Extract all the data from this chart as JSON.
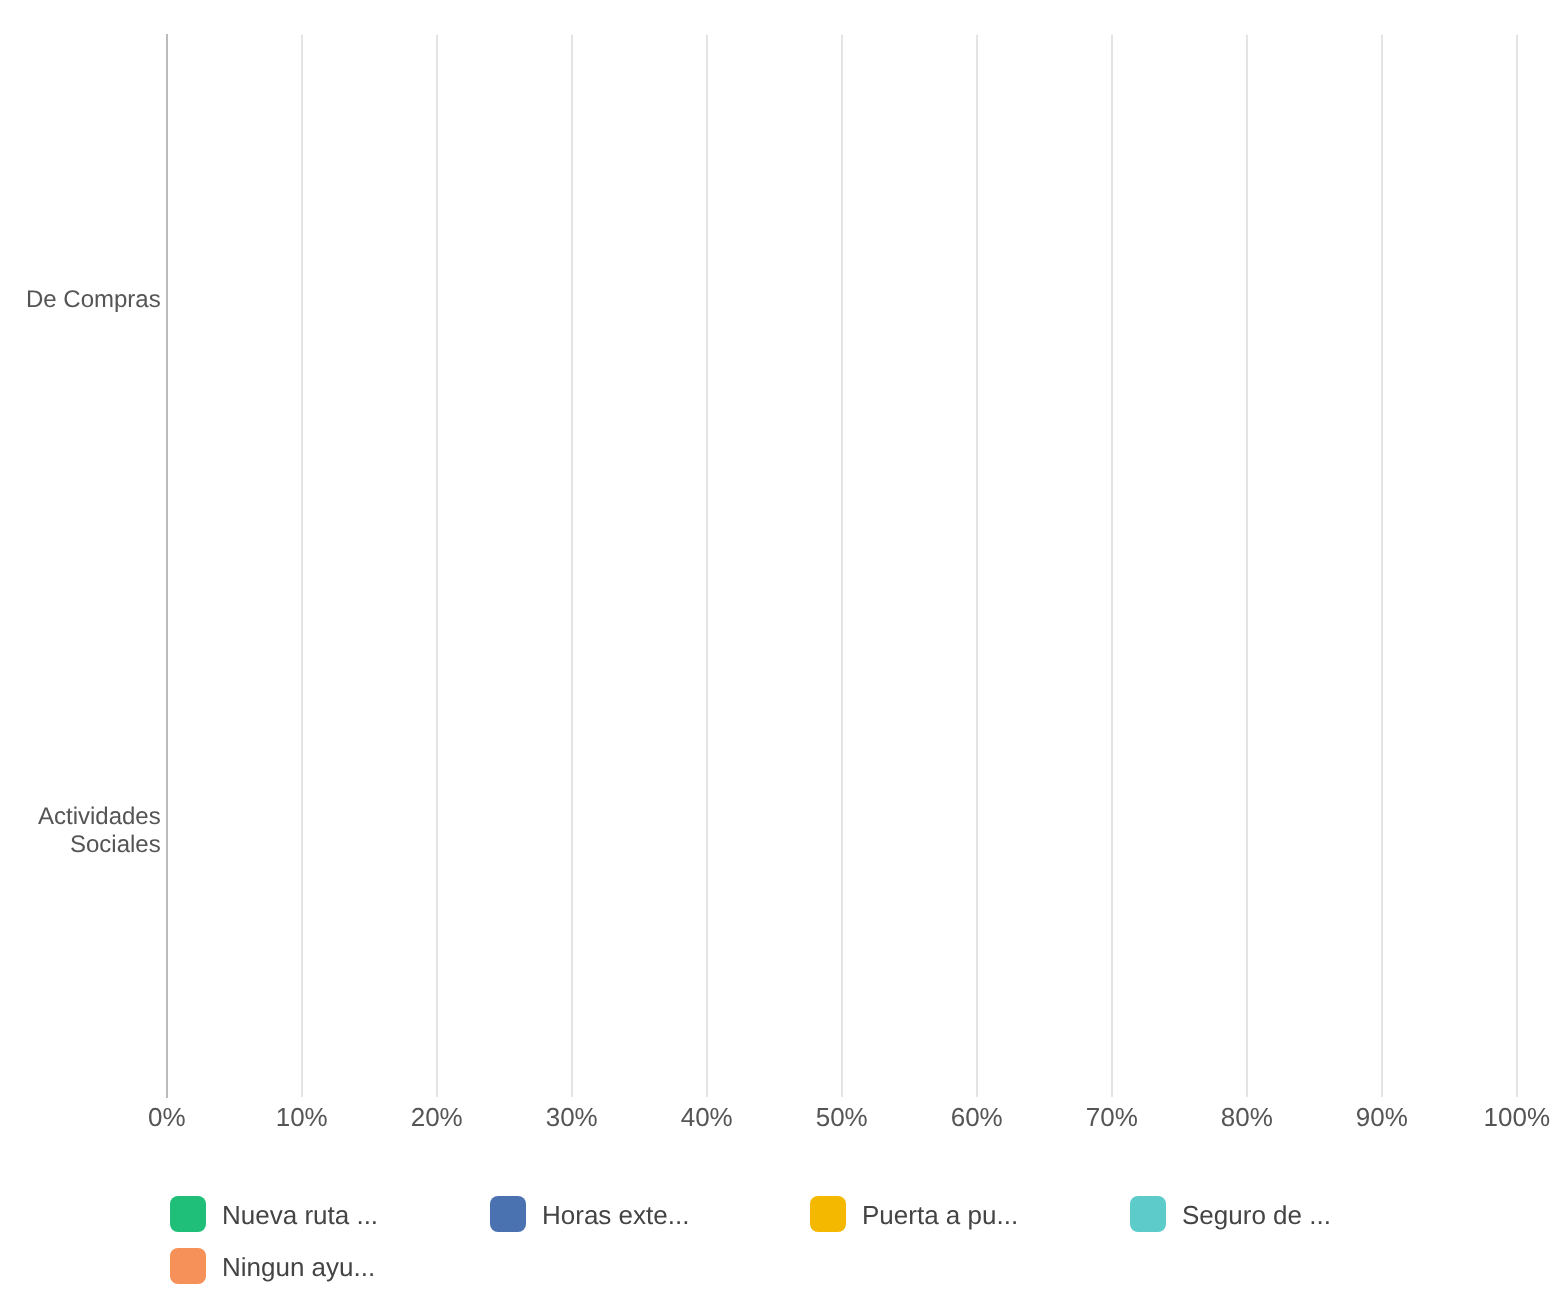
{
  "chart_data": {
    "type": "bar",
    "orientation": "horizontal",
    "categories": [
      "De Compras",
      "Actividades Sociales"
    ],
    "series": [
      {
        "name": "Nueva ruta ...",
        "color": "#1fbf7a",
        "values": [
          null,
          null
        ]
      },
      {
        "name": "Horas exte...",
        "color": "#4a72b0",
        "values": [
          null,
          null
        ]
      },
      {
        "name": "Puerta a pu...",
        "color": "#f5b800",
        "values": [
          null,
          null
        ]
      },
      {
        "name": "Seguro de ...",
        "color": "#5ecbcb",
        "values": [
          null,
          null
        ]
      },
      {
        "name": "Ningun ayu...",
        "color": "#f7915a",
        "values": [
          null,
          null
        ]
      }
    ],
    "xlim": [
      0,
      100
    ],
    "xticks": [
      {
        "value": 0,
        "label": "0%"
      },
      {
        "value": 10,
        "label": "10%"
      },
      {
        "value": 20,
        "label": "20%"
      },
      {
        "value": 30,
        "label": "30%"
      },
      {
        "value": 40,
        "label": "40%"
      },
      {
        "value": 50,
        "label": "50%"
      },
      {
        "value": 60,
        "label": "60%"
      },
      {
        "value": 70,
        "label": "70%"
      },
      {
        "value": 80,
        "label": "80%"
      },
      {
        "value": 90,
        "label": "90%"
      },
      {
        "value": 100,
        "label": "100%"
      }
    ],
    "grid": "x",
    "legend": "bottom"
  }
}
